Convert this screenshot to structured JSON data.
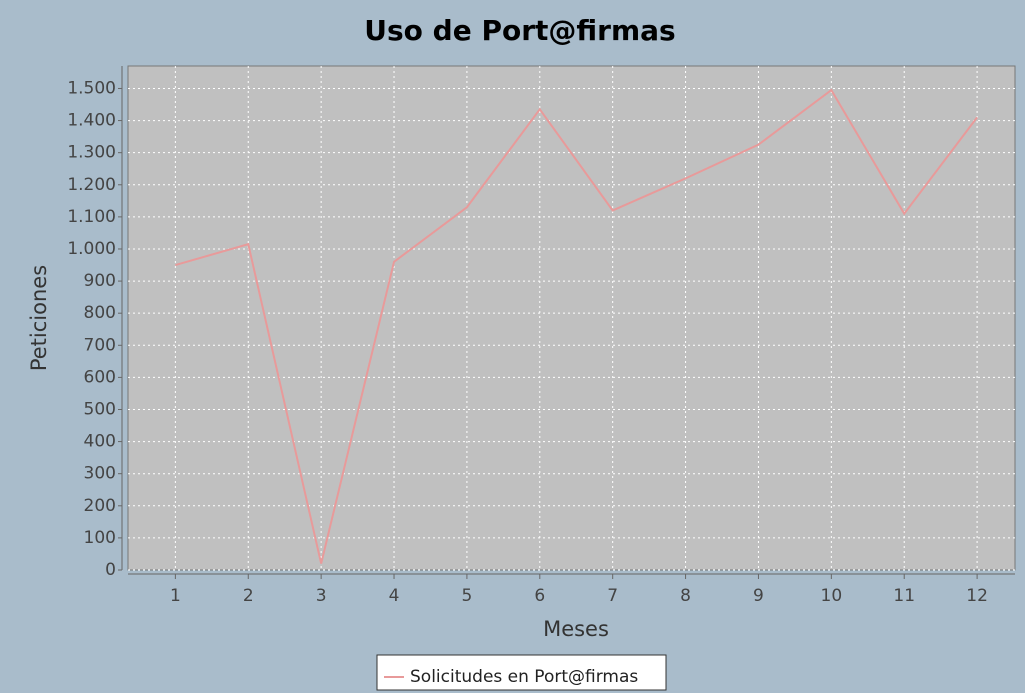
{
  "chart_data": {
    "type": "line",
    "title": "Uso de Port@firmas",
    "x_label": "Meses",
    "y_label": "Peticiones",
    "x": [
      1,
      2,
      3,
      4,
      5,
      6,
      7,
      8,
      9,
      10,
      11,
      12
    ],
    "series": [
      {
        "name": "Solicitudes en Port@firmas",
        "color": "#e89a9a",
        "values": [
          950,
          1015,
          20,
          960,
          1130,
          1435,
          1120,
          1220,
          1325,
          1495,
          1110,
          1410
        ]
      }
    ],
    "xlim": [
      0.35,
      12.52
    ],
    "xticks": [
      1,
      2,
      3,
      4,
      5,
      6,
      7,
      8,
      9,
      10,
      11,
      12
    ],
    "ylim": [
      0,
      1570
    ],
    "yticks": [
      0,
      100,
      200,
      300,
      400,
      500,
      600,
      700,
      800,
      900,
      {
        "value": 1000,
        "label": "1.000"
      },
      {
        "value": 1100,
        "label": "1.100"
      },
      {
        "value": 1200,
        "label": "1.200"
      },
      {
        "value": 1300,
        "label": "1.300"
      },
      {
        "value": 1400,
        "label": "1.400"
      },
      {
        "value": 1500,
        "label": "1.500"
      }
    ],
    "grid": true,
    "legend": "bottom"
  }
}
